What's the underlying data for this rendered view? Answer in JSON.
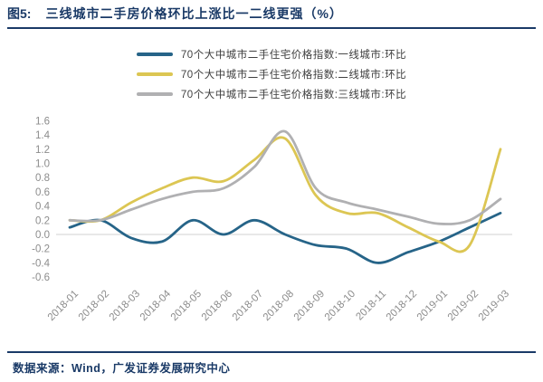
{
  "header": {
    "tag": "图5:",
    "title": "三线城市二手房价格环比上涨比一二线更强（%）"
  },
  "footer": {
    "source": "数据来源：Wind，广发证券发展研究中心"
  },
  "colors": {
    "navy_text": "#1A3A67",
    "axis_text": "#8C8C8C",
    "zero_gridline": "#D9D9D9",
    "legend_text": "#404040",
    "tier1_blue": "#266488",
    "tier2_gold": "#DCC653",
    "tier3_gray": "#B0B0B2"
  },
  "chart_data": {
    "type": "line",
    "title": "三线城市二手房价格环比上涨比一二线更强（%）",
    "xlabel": "",
    "ylabel": "",
    "ylim": [
      -0.6,
      1.6
    ],
    "ytick_step": 0.2,
    "grid": "zero-line-only",
    "legend_position": "top-center",
    "line_style": "smooth",
    "categories": [
      "2018-01",
      "2018-02",
      "2018-03",
      "2018-04",
      "2018-05",
      "2018-06",
      "2018-07",
      "2018-08",
      "2018-09",
      "2018-10",
      "2018-11",
      "2018-12",
      "2019-01",
      "2019-02",
      "2019-03"
    ],
    "series": [
      {
        "name": "70个大中城市二手住宅价格指数:一线城市:环比",
        "color": "#266488",
        "values": [
          0.1,
          0.2,
          -0.05,
          -0.1,
          0.2,
          0.0,
          0.2,
          0.0,
          -0.15,
          -0.2,
          -0.4,
          -0.25,
          -0.1,
          0.1,
          0.3
        ]
      },
      {
        "name": "70个大中城市二手住宅价格指数:二线城市:环比",
        "color": "#DCC653",
        "values": [
          0.2,
          0.2,
          0.45,
          0.65,
          0.8,
          0.75,
          1.05,
          1.35,
          0.55,
          0.3,
          0.3,
          0.1,
          -0.1,
          -0.15,
          1.2
        ]
      },
      {
        "name": "70个大中城市二手住宅价格指数:三线城市:环比",
        "color": "#B0B0B2",
        "values": [
          0.2,
          0.2,
          0.35,
          0.5,
          0.6,
          0.65,
          0.95,
          1.45,
          0.65,
          0.45,
          0.35,
          0.25,
          0.15,
          0.2,
          0.5
        ]
      }
    ]
  }
}
